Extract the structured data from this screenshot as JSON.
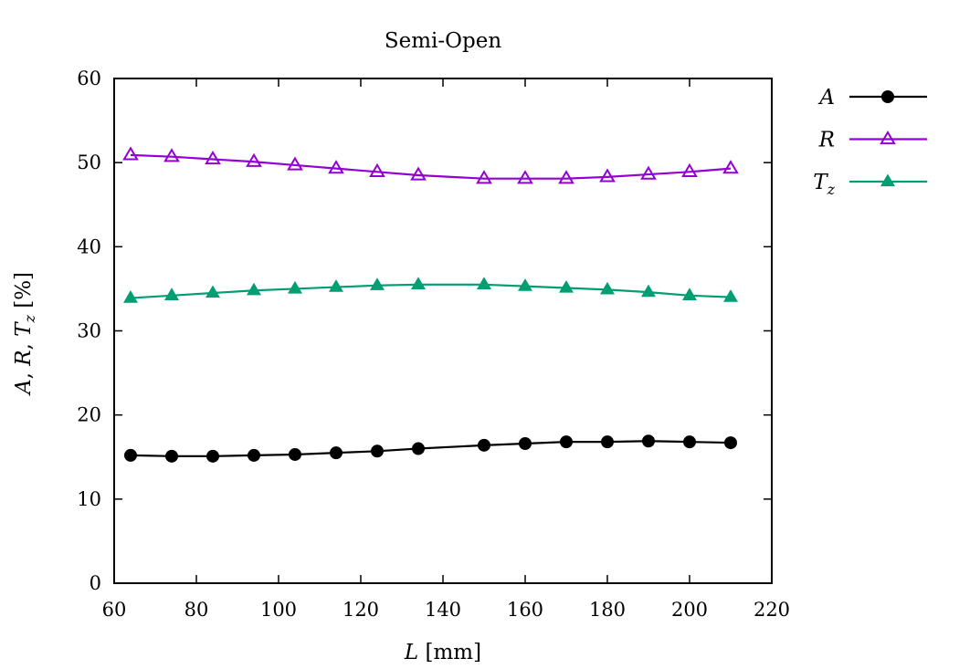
{
  "chart_data": {
    "type": "line",
    "title": "Semi-Open",
    "xlabel": {
      "var": "L",
      "unit": "[mm]"
    },
    "ylabel": {
      "parts": [
        "A",
        "R",
        "T",
        "z"
      ],
      "unit": "[%]"
    },
    "xlim": [
      60,
      220
    ],
    "ylim": [
      0,
      60
    ],
    "xticks": [
      "60",
      "80",
      "100",
      "120",
      "140",
      "160",
      "180",
      "200",
      "220"
    ],
    "yticks": [
      "0",
      "10",
      "20",
      "30",
      "40",
      "50",
      "60"
    ],
    "grid": false,
    "legend_position": "outside-right",
    "series": [
      {
        "name": "A",
        "color": "#000000",
        "marker": "circle-filled",
        "x": [
          64,
          74,
          84,
          94,
          104,
          114,
          124,
          134,
          150,
          160,
          170,
          180,
          190,
          200,
          210
        ],
        "y": [
          15.2,
          15.1,
          15.1,
          15.2,
          15.3,
          15.5,
          15.7,
          16.0,
          16.4,
          16.6,
          16.8,
          16.8,
          16.9,
          16.8,
          16.7
        ]
      },
      {
        "name": "R",
        "color": "#9400d3",
        "marker": "triangle-open",
        "x": [
          64,
          74,
          84,
          94,
          104,
          114,
          124,
          134,
          150,
          160,
          170,
          180,
          190,
          200,
          210
        ],
        "y": [
          50.9,
          50.7,
          50.4,
          50.1,
          49.7,
          49.3,
          48.9,
          48.5,
          48.1,
          48.1,
          48.1,
          48.3,
          48.6,
          48.9,
          49.3
        ]
      },
      {
        "name": "T",
        "name_sub": "z",
        "color": "#009e73",
        "marker": "triangle-filled",
        "x": [
          64,
          74,
          84,
          94,
          104,
          114,
          124,
          134,
          150,
          160,
          170,
          180,
          190,
          200,
          210
        ],
        "y": [
          33.9,
          34.2,
          34.5,
          34.8,
          35.0,
          35.2,
          35.4,
          35.5,
          35.5,
          35.3,
          35.1,
          34.9,
          34.6,
          34.2,
          34.0
        ]
      }
    ]
  }
}
